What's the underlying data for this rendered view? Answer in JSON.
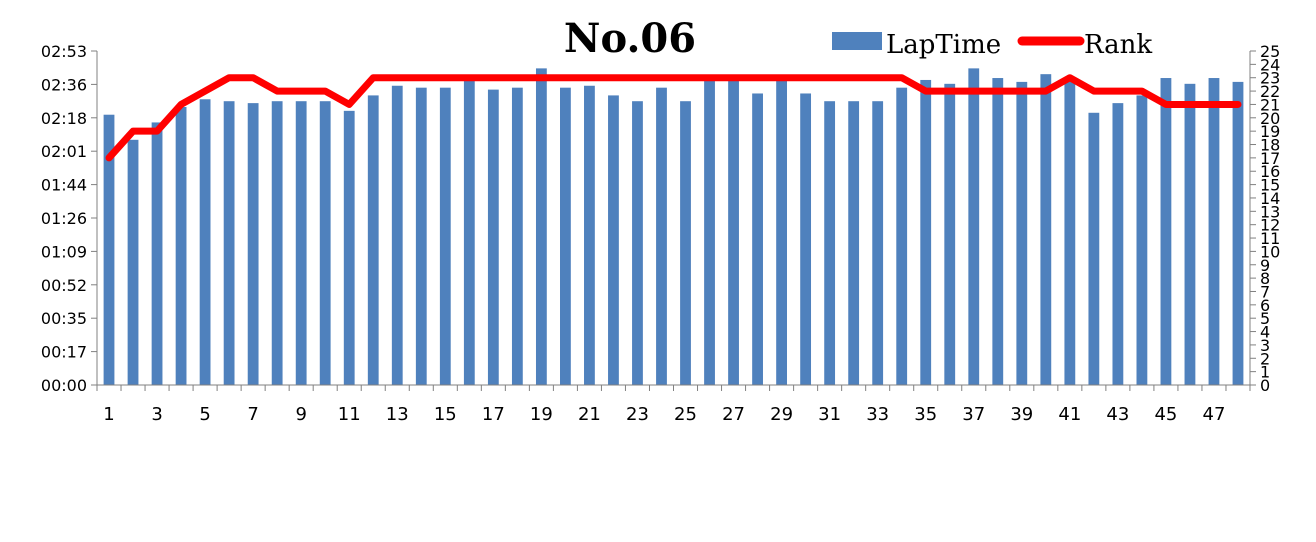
{
  "chart_data": {
    "type": "bar+line",
    "title": "No.06",
    "categories": [
      1,
      2,
      3,
      4,
      5,
      6,
      7,
      8,
      9,
      10,
      11,
      12,
      13,
      14,
      15,
      16,
      17,
      18,
      19,
      20,
      21,
      22,
      23,
      24,
      25,
      26,
      27,
      28,
      29,
      30,
      31,
      32,
      33,
      34,
      35,
      36,
      37,
      38,
      39,
      40,
      41,
      42,
      43,
      44,
      45,
      46,
      47,
      48
    ],
    "x_tick_labels": [
      "1",
      "3",
      "5",
      "7",
      "9",
      "11",
      "13",
      "15",
      "17",
      "19",
      "21",
      "23",
      "25",
      "27",
      "29",
      "31",
      "33",
      "35",
      "37",
      "39",
      "41",
      "43",
      "45",
      "47"
    ],
    "series": [
      {
        "name": "LapTime",
        "type": "bar",
        "axis": "left",
        "color": "#4f81bd",
        "values_seconds": [
          140,
          127,
          136,
          144,
          148,
          147,
          146,
          147,
          147,
          147,
          142,
          150,
          155,
          154,
          154,
          160,
          153,
          154,
          164,
          154,
          155,
          150,
          147,
          154,
          147,
          160,
          160,
          151,
          160,
          151,
          147,
          147,
          147,
          154,
          158,
          156,
          164,
          159,
          157,
          161,
          159,
          141,
          146,
          150,
          159,
          156,
          159,
          157
        ]
      },
      {
        "name": "Rank",
        "type": "line",
        "axis": "right",
        "color": "#ff0000",
        "values": [
          17,
          19,
          19,
          21,
          22,
          23,
          23,
          22,
          22,
          22,
          21,
          23,
          23,
          23,
          23,
          23,
          23,
          23,
          23,
          23,
          23,
          23,
          23,
          23,
          23,
          23,
          23,
          23,
          23,
          23,
          23,
          23,
          23,
          23,
          22,
          22,
          22,
          22,
          22,
          22,
          23,
          22,
          22,
          22,
          21,
          21,
          21,
          21
        ]
      }
    ],
    "y_left": {
      "tick_labels": [
        "00:00",
        "00:17",
        "00:35",
        "00:52",
        "01:09",
        "01:26",
        "01:44",
        "02:01",
        "02:18",
        "02:36",
        "02:53"
      ],
      "ylim_seconds": [
        0,
        173
      ]
    },
    "y_right": {
      "tick_labels": [
        "0",
        "1",
        "2",
        "3",
        "4",
        "5",
        "6",
        "7",
        "8",
        "9",
        "10",
        "11",
        "12",
        "13",
        "14",
        "15",
        "16",
        "17",
        "18",
        "19",
        "20",
        "21",
        "22",
        "23",
        "24",
        "25"
      ],
      "ylim": [
        0,
        25
      ]
    },
    "legend": {
      "placement": "top-right",
      "entries": [
        "LapTime",
        "Rank"
      ]
    },
    "grid": false
  }
}
